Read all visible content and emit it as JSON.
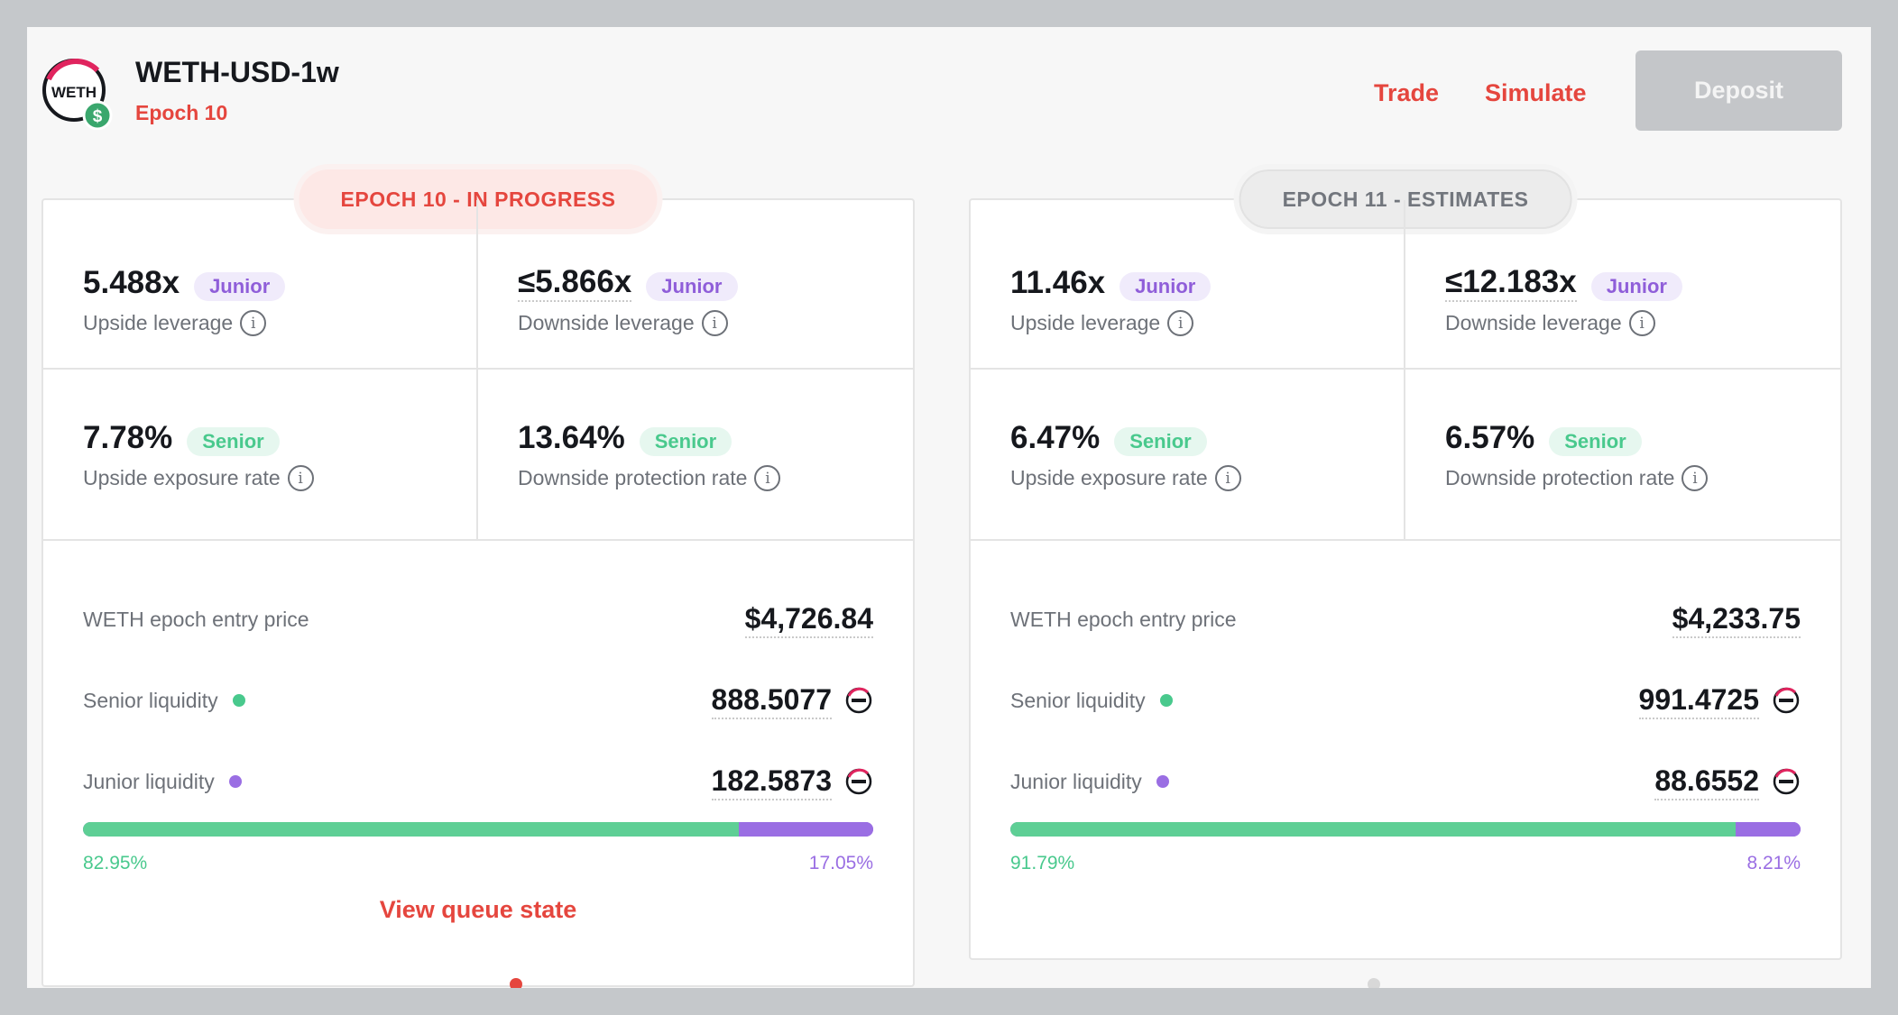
{
  "header": {
    "title": "WETH-USD-1w",
    "epoch": "Epoch 10",
    "logo_text": "WETH",
    "logo_badge": "$",
    "nav": {
      "trade": "Trade",
      "simulate": "Simulate"
    },
    "deposit_label": "Deposit"
  },
  "colors": {
    "accent": "#e5463e",
    "senior": "#49c98d",
    "junior": "#9a6ee3",
    "disabled_button": "#c4c6c9"
  },
  "cards": [
    {
      "pill": "EPOCH 10 - IN PROGRESS",
      "upside_leverage": {
        "value": "5.488x",
        "badge": "Junior",
        "label": "Upside leverage"
      },
      "downside_leverage": {
        "value": "≤5.866x",
        "badge": "Junior",
        "label": "Downside leverage"
      },
      "upside_exposure": {
        "value": "7.78%",
        "badge": "Senior",
        "label": "Upside exposure rate"
      },
      "downside_protection": {
        "value": "13.64%",
        "badge": "Senior",
        "label": "Downside protection rate"
      },
      "entry_price": {
        "label": "WETH epoch entry price",
        "value": "$4,726.84"
      },
      "senior_liquidity": {
        "label": "Senior liquidity",
        "value": "888.5077"
      },
      "junior_liquidity": {
        "label": "Junior liquidity",
        "value": "182.5873"
      },
      "senior_pct": "82.95%",
      "junior_pct": "17.05%",
      "senior_fraction": 0.8295,
      "queue_link": "View queue state"
    },
    {
      "pill": "EPOCH 11 - ESTIMATES",
      "upside_leverage": {
        "value": "11.46x",
        "badge": "Junior",
        "label": "Upside leverage"
      },
      "downside_leverage": {
        "value": "≤12.183x",
        "badge": "Junior",
        "label": "Downside leverage"
      },
      "upside_exposure": {
        "value": "6.47%",
        "badge": "Senior",
        "label": "Upside exposure rate"
      },
      "downside_protection": {
        "value": "6.57%",
        "badge": "Senior",
        "label": "Downside protection rate"
      },
      "entry_price": {
        "label": "WETH epoch entry price",
        "value": "$4,233.75"
      },
      "senior_liquidity": {
        "label": "Senior liquidity",
        "value": "991.4725"
      },
      "junior_liquidity": {
        "label": "Junior liquidity",
        "value": "88.6552"
      },
      "senior_pct": "91.79%",
      "junior_pct": "8.21%",
      "senior_fraction": 0.9179
    }
  ],
  "info_icon_glyph": "i",
  "carousel": {
    "active_index": 0,
    "count": 2
  }
}
